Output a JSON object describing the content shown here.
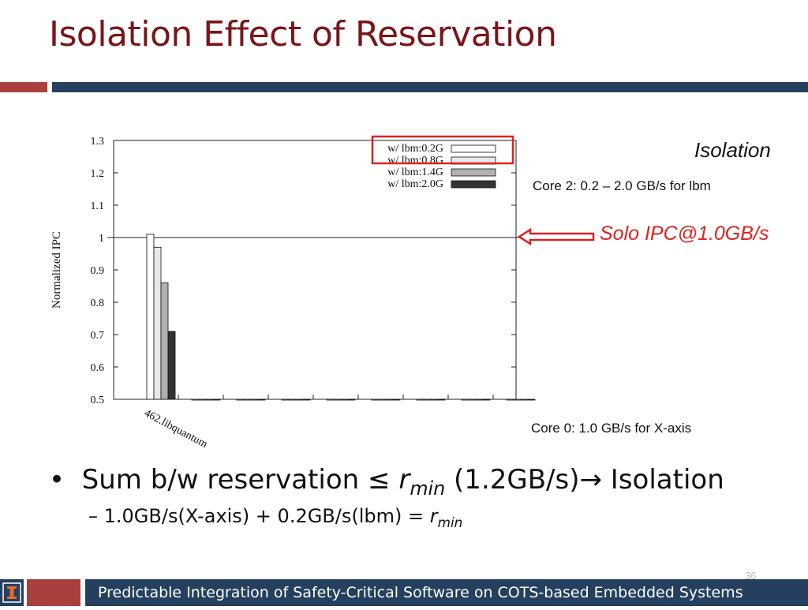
{
  "slide": {
    "title": "Isolation Effect of Reservation",
    "notes": {
      "isolation": "Isolation",
      "core2": "Core 2: 0.2 – 2.0 GB/s for lbm",
      "solo": "Solo IPC@1.0GB/s",
      "core0": "Core 0: 1.0 GB/s for X-axis"
    },
    "bullet": {
      "prefix": "Sum b/w reservation",
      "leq": "≤",
      "r": "r",
      "r_sub": "min",
      "middle": " (1.2GB/s)",
      "arrow": "→",
      "suffix": " Isolation"
    },
    "subbullet": {
      "dash": "–",
      "text": "1.0GB/s(X-axis) + 0.2GB/s(lbm) = ",
      "r": "r",
      "r_sub": "min"
    },
    "footer": {
      "logo": "I",
      "text": "Predictable Integration of Safety-Critical Software on COTS-based Embedded Systems",
      "page_number": "36"
    },
    "colors": {
      "title": "#7a1518",
      "accent_red": "#a9403d",
      "accent_blue": "#25405f",
      "solo_text": "#e02020"
    }
  },
  "chart_data": {
    "type": "bar",
    "ylabel": "Normalized IPC",
    "ylim": [
      0.5,
      1.3
    ],
    "yticks": [
      "0.5",
      "0.6",
      "0.7",
      "0.8",
      "0.9",
      "1",
      "1.1",
      "1.2",
      "1.3"
    ],
    "categories": [
      "462.libquantum",
      "",
      "",
      "",
      "",
      "",
      "",
      "",
      ""
    ],
    "series": [
      {
        "name": "w/ lbm:0.2G",
        "fill": "#ffffff",
        "values": [
          1.01,
          0.5,
          0.5,
          0.5,
          0.5,
          0.5,
          0.5,
          0.5,
          0.5
        ]
      },
      {
        "name": "w/ lbm:0.8G",
        "fill": "#e8e8e8",
        "values": [
          0.97,
          0.5,
          0.5,
          0.5,
          0.5,
          0.5,
          0.5,
          0.5,
          0.5
        ]
      },
      {
        "name": "w/ lbm:1.4G",
        "fill": "#b0b0b0",
        "values": [
          0.86,
          0.5,
          0.5,
          0.5,
          0.5,
          0.5,
          0.5,
          0.5,
          0.5
        ]
      },
      {
        "name": "w/ lbm:2.0G",
        "fill": "#333333",
        "values": [
          0.71,
          0.5,
          0.5,
          0.5,
          0.5,
          0.5,
          0.5,
          0.5,
          0.5
        ]
      }
    ],
    "reference_line": 1.0,
    "legend_position": "top-right",
    "highlight": "w/ lbm:0.2G"
  }
}
